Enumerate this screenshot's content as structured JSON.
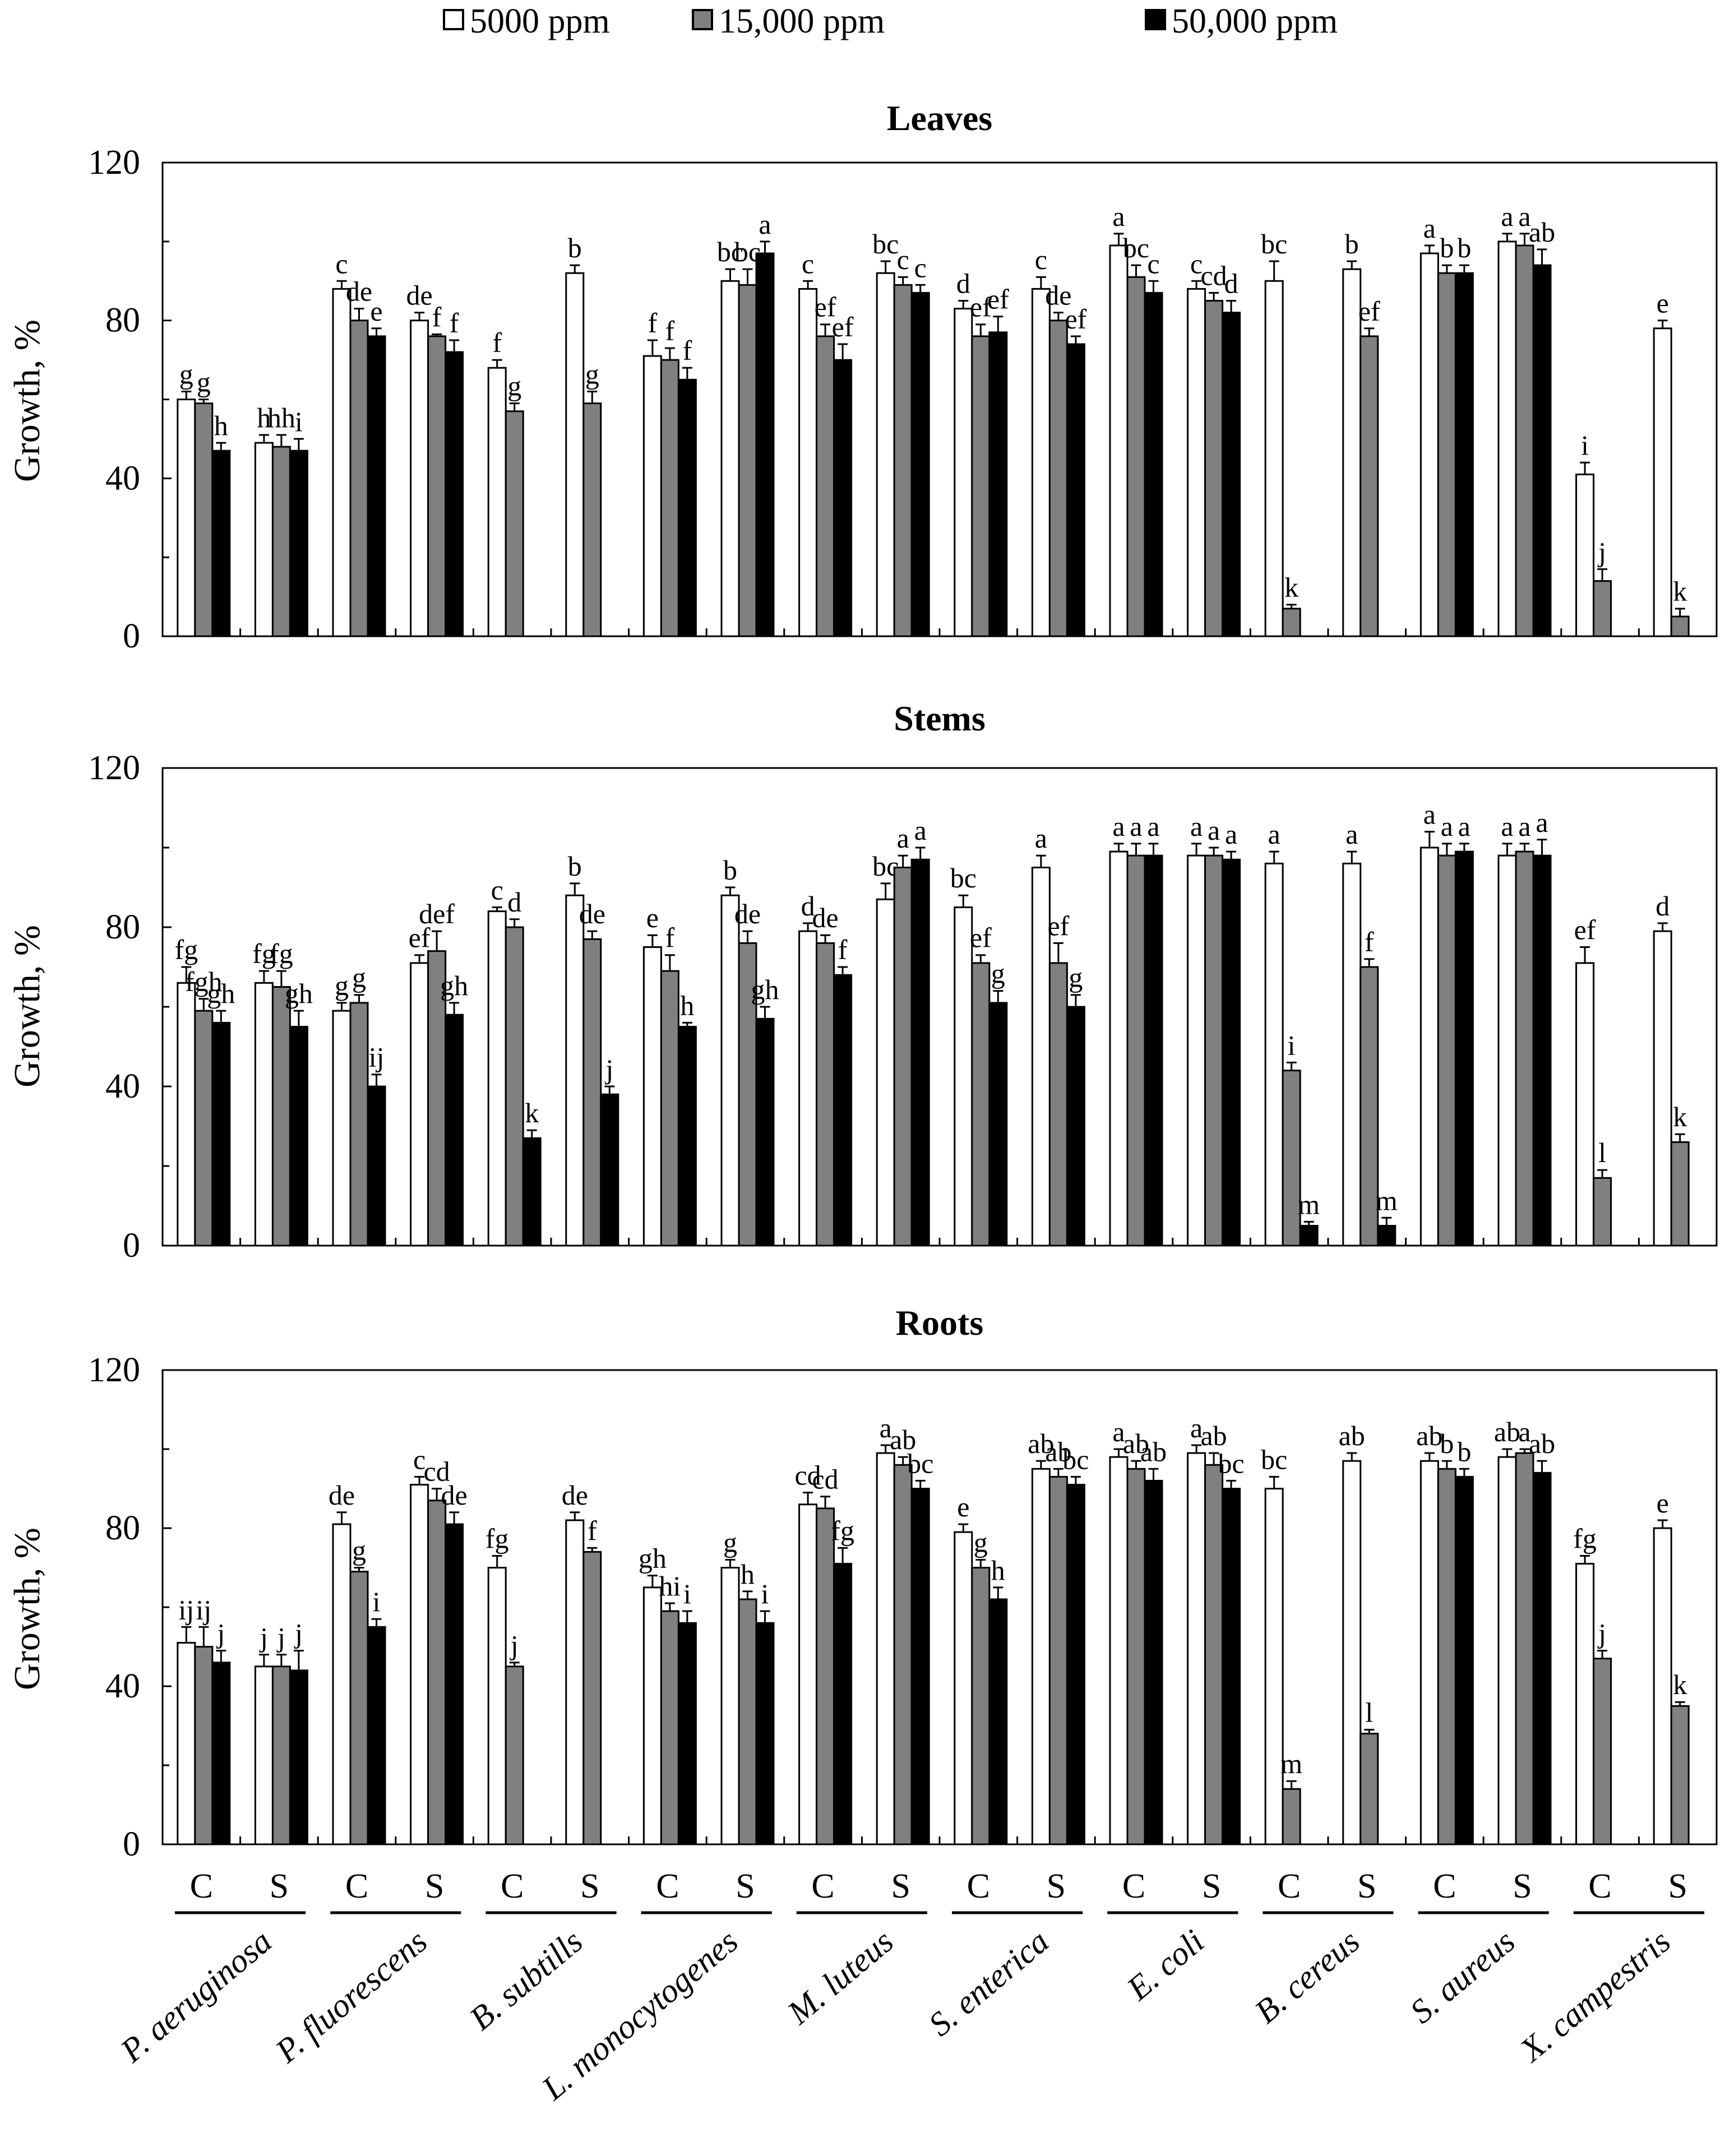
{
  "legend": [
    {
      "label": "5000 ppm",
      "color": "#ffffff"
    },
    {
      "label": "15,000 ppm",
      "color": "#808080"
    },
    {
      "label": "50,000 ppm",
      "color": "#000000"
    }
  ],
  "chart_data": {
    "type": "bar",
    "ylabel": "Growth, %",
    "ylim": [
      0,
      120
    ],
    "yticks": [
      0,
      40,
      80,
      120
    ],
    "series_names": [
      "5000 ppm",
      "15,000 ppm",
      "50,000 ppm"
    ],
    "species": [
      "P. aeruginosa",
      "P. fluorescens",
      "B. subtills",
      "L. monocytogenes",
      "M. luteus",
      "S. enterica",
      "E. coli",
      "B. cereus",
      "S. aureus",
      "X. campestris"
    ],
    "categories": [
      "C",
      "S",
      "C",
      "S",
      "C",
      "S",
      "C",
      "S",
      "C",
      "S",
      "C",
      "S",
      "C",
      "S",
      "C",
      "S",
      "C",
      "S",
      "C",
      "S"
    ],
    "panels": [
      {
        "title": "Leaves",
        "groups": [
          {
            "values": [
              60,
              59,
              47
            ],
            "errors": [
              2,
              1,
              2
            ],
            "letters": [
              "g",
              "g",
              "h"
            ]
          },
          {
            "values": [
              49,
              48,
              47
            ],
            "errors": [
              2,
              3,
              3
            ],
            "letters": [
              "h",
              "hh",
              "i"
            ]
          },
          {
            "values": [
              88,
              80,
              76
            ],
            "errors": [
              2,
              3,
              2
            ],
            "letters": [
              "c",
              "de",
              "e"
            ]
          },
          {
            "values": [
              80,
              76,
              72
            ],
            "errors": [
              2,
              0.5,
              3
            ],
            "letters": [
              "de",
              "f",
              "f"
            ]
          },
          {
            "values": [
              68,
              57
            ],
            "errors": [
              2,
              2
            ],
            "letters": [
              "f",
              "g"
            ]
          },
          {
            "values": [
              92,
              59
            ],
            "errors": [
              2,
              3
            ],
            "letters": [
              "b",
              "g"
            ]
          },
          {
            "values": [
              71,
              70,
              65
            ],
            "errors": [
              4,
              3,
              3
            ],
            "letters": [
              "f",
              "f",
              "f"
            ]
          },
          {
            "values": [
              90,
              89,
              97
            ],
            "errors": [
              3,
              4,
              3
            ],
            "letters": [
              "bc",
              "bc",
              "a"
            ]
          },
          {
            "values": [
              88,
              76,
              70
            ],
            "errors": [
              2,
              3,
              4
            ],
            "letters": [
              "c",
              "ef",
              "ef"
            ]
          },
          {
            "values": [
              92,
              89,
              87
            ],
            "errors": [
              3,
              2,
              2
            ],
            "letters": [
              "bc",
              "c",
              "c"
            ]
          },
          {
            "values": [
              83,
              76,
              77
            ],
            "errors": [
              2,
              3,
              4
            ],
            "letters": [
              "d",
              "ef",
              "ef"
            ]
          },
          {
            "values": [
              88,
              80,
              74
            ],
            "errors": [
              3,
              2,
              2
            ],
            "letters": [
              "c",
              "de",
              "ef"
            ]
          },
          {
            "values": [
              99,
              91,
              87
            ],
            "errors": [
              3,
              3,
              3
            ],
            "letters": [
              "a",
              "bc",
              "c"
            ]
          },
          {
            "values": [
              88,
              85,
              82
            ],
            "errors": [
              2,
              2,
              3
            ],
            "letters": [
              "c",
              "cd",
              "d"
            ]
          },
          {
            "values": [
              90,
              7
            ],
            "errors": [
              5,
              1
            ],
            "letters": [
              "bc",
              "k"
            ]
          },
          {
            "values": [
              93,
              76
            ],
            "errors": [
              2,
              2
            ],
            "letters": [
              "b",
              "ef"
            ]
          },
          {
            "values": [
              97,
              92,
              92
            ],
            "errors": [
              2,
              2,
              2
            ],
            "letters": [
              "a",
              "b",
              "b"
            ]
          },
          {
            "values": [
              100,
              99,
              94
            ],
            "errors": [
              2,
              3,
              4
            ],
            "letters": [
              "a",
              "a",
              "ab"
            ]
          },
          {
            "values": [
              41,
              14
            ],
            "errors": [
              3,
              3
            ],
            "letters": [
              "i",
              "j"
            ]
          },
          {
            "values": [
              78,
              5
            ],
            "errors": [
              2,
              2
            ],
            "letters": [
              "e",
              "k"
            ]
          }
        ]
      },
      {
        "title": "Stems",
        "groups": [
          {
            "values": [
              66,
              59,
              56
            ],
            "errors": [
              4,
              3,
              3
            ],
            "letters": [
              "fg",
              "fgh",
              "gh"
            ]
          },
          {
            "values": [
              66,
              65,
              55
            ],
            "errors": [
              3,
              4,
              4
            ],
            "letters": [
              "fg",
              "fg",
              "gh"
            ]
          },
          {
            "values": [
              59,
              61,
              40
            ],
            "errors": [
              2,
              2,
              3
            ],
            "letters": [
              "g",
              "g",
              "ij"
            ]
          },
          {
            "values": [
              71,
              74,
              58
            ],
            "errors": [
              2,
              5,
              3
            ],
            "letters": [
              "ef",
              "def",
              "gh"
            ]
          },
          {
            "values": [
              84,
              80,
              27
            ],
            "errors": [
              1,
              2,
              2
            ],
            "letters": [
              "c",
              "d",
              "k"
            ]
          },
          {
            "values": [
              88,
              77,
              38
            ],
            "errors": [
              3,
              2,
              2
            ],
            "letters": [
              "b",
              "de",
              "j"
            ]
          },
          {
            "values": [
              75,
              69,
              55
            ],
            "errors": [
              3,
              4,
              1
            ],
            "letters": [
              "e",
              "f",
              "h"
            ]
          },
          {
            "values": [
              88,
              76,
              57
            ],
            "errors": [
              2,
              3,
              3
            ],
            "letters": [
              "b",
              "de",
              "gh"
            ]
          },
          {
            "values": [
              79,
              76,
              68
            ],
            "errors": [
              2,
              2,
              2
            ],
            "letters": [
              "d",
              "de",
              "f"
            ]
          },
          {
            "values": [
              87,
              95,
              97
            ],
            "errors": [
              4,
              3,
              3
            ],
            "letters": [
              "bc",
              "a",
              "a"
            ]
          },
          {
            "values": [
              85,
              71,
              61
            ],
            "errors": [
              3,
              2,
              3
            ],
            "letters": [
              "bc",
              "ef",
              "g"
            ]
          },
          {
            "values": [
              95,
              71,
              60
            ],
            "errors": [
              3,
              5,
              3
            ],
            "letters": [
              "a",
              "ef",
              "g"
            ]
          },
          {
            "values": [
              99,
              98,
              98
            ],
            "errors": [
              2,
              3,
              3
            ],
            "letters": [
              "a",
              "a",
              "a"
            ]
          },
          {
            "values": [
              98,
              98,
              97
            ],
            "errors": [
              3,
              2,
              2
            ],
            "letters": [
              "a",
              "a",
              "a"
            ]
          },
          {
            "values": [
              96,
              44,
              5
            ],
            "errors": [
              3,
              2,
              1
            ],
            "letters": [
              "a",
              "i",
              "m"
            ]
          },
          {
            "values": [
              96,
              70,
              5
            ],
            "errors": [
              3,
              2,
              2
            ],
            "letters": [
              "a",
              "f",
              "m"
            ]
          },
          {
            "values": [
              100,
              98,
              99
            ],
            "errors": [
              4,
              3,
              2
            ],
            "letters": [
              "a",
              "a",
              "a"
            ]
          },
          {
            "values": [
              98,
              99,
              98
            ],
            "errors": [
              3,
              2,
              4
            ],
            "letters": [
              "a",
              "a",
              "a"
            ]
          },
          {
            "values": [
              71,
              17
            ],
            "errors": [
              4,
              2
            ],
            "letters": [
              "ef",
              "l"
            ]
          },
          {
            "values": [
              79,
              26
            ],
            "errors": [
              2,
              2
            ],
            "letters": [
              "d",
              "k"
            ]
          }
        ]
      },
      {
        "title": "Roots",
        "groups": [
          {
            "values": [
              51,
              50,
              46
            ],
            "errors": [
              4,
              5,
              3
            ],
            "letters": [
              "ij",
              "ij",
              "j"
            ]
          },
          {
            "values": [
              45,
              45,
              44
            ],
            "errors": [
              3,
              3,
              5
            ],
            "letters": [
              "j",
              "j",
              "j"
            ]
          },
          {
            "values": [
              81,
              69,
              55
            ],
            "errors": [
              3,
              1,
              2
            ],
            "letters": [
              "de",
              "g",
              "i"
            ]
          },
          {
            "values": [
              91,
              87,
              81
            ],
            "errors": [
              2,
              3,
              3
            ],
            "letters": [
              "c",
              "cd",
              "de"
            ]
          },
          {
            "values": [
              70,
              45
            ],
            "errors": [
              3,
              1
            ],
            "letters": [
              "fg",
              "j"
            ]
          },
          {
            "values": [
              82,
              74
            ],
            "errors": [
              2,
              1
            ],
            "letters": [
              "de",
              "f"
            ]
          },
          {
            "values": [
              65,
              59,
              56
            ],
            "errors": [
              3,
              2,
              3
            ],
            "letters": [
              "gh",
              "hi",
              "i"
            ]
          },
          {
            "values": [
              70,
              62,
              56
            ],
            "errors": [
              2,
              2,
              3
            ],
            "letters": [
              "g",
              "h",
              "i"
            ]
          },
          {
            "values": [
              86,
              85,
              71
            ],
            "errors": [
              3,
              3,
              4
            ],
            "letters": [
              "cd",
              "cd",
              "fg"
            ]
          },
          {
            "values": [
              99,
              96,
              90
            ],
            "errors": [
              2,
              2,
              2
            ],
            "letters": [
              "a",
              "ab",
              "bc"
            ]
          },
          {
            "values": [
              79,
              70,
              62
            ],
            "errors": [
              2,
              2,
              3
            ],
            "letters": [
              "e",
              "g",
              "h"
            ]
          },
          {
            "values": [
              95,
              93,
              91
            ],
            "errors": [
              2,
              2,
              2
            ],
            "letters": [
              "ab",
              "ab",
              "bc"
            ]
          },
          {
            "values": [
              98,
              95,
              92
            ],
            "errors": [
              2,
              2,
              3
            ],
            "letters": [
              "a",
              "ab",
              "ab"
            ]
          },
          {
            "values": [
              99,
              96,
              90
            ],
            "errors": [
              2,
              3,
              2
            ],
            "letters": [
              "a",
              "ab",
              "bc"
            ]
          },
          {
            "values": [
              90,
              14
            ],
            "errors": [
              3,
              2
            ],
            "letters": [
              "bc",
              "m"
            ]
          },
          {
            "values": [
              97,
              28
            ],
            "errors": [
              2,
              1
            ],
            "letters": [
              "ab",
              "l"
            ]
          },
          {
            "values": [
              97,
              95,
              93
            ],
            "errors": [
              2,
              2,
              2
            ],
            "letters": [
              "ab",
              "b",
              "b"
            ]
          },
          {
            "values": [
              98,
              99,
              94
            ],
            "errors": [
              2,
              1,
              3
            ],
            "letters": [
              "ab",
              "a",
              "ab"
            ]
          },
          {
            "values": [
              71,
              47
            ],
            "errors": [
              2,
              2
            ],
            "letters": [
              "fg",
              "j"
            ]
          },
          {
            "values": [
              80,
              35
            ],
            "errors": [
              2,
              1
            ],
            "letters": [
              "e",
              "k"
            ]
          }
        ]
      }
    ]
  }
}
